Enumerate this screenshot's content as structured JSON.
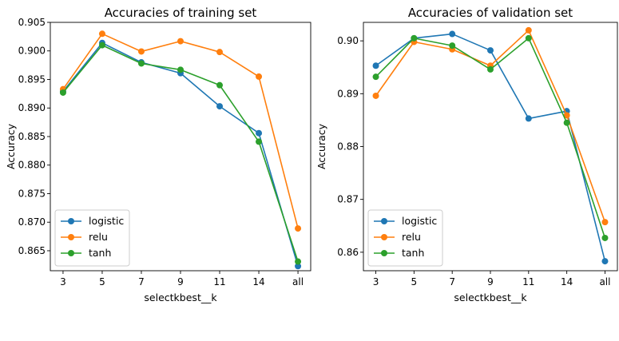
{
  "chart_data": [
    {
      "type": "line",
      "title": "Accuracies of training set",
      "xlabel": "selectkbest__k",
      "ylabel": "Accuracy",
      "categories": [
        "3",
        "5",
        "7",
        "9",
        "11",
        "14",
        "all"
      ],
      "ylim": [
        0.8615,
        0.905
      ],
      "yticks": [
        0.865,
        0.87,
        0.875,
        0.88,
        0.885,
        0.89,
        0.895,
        0.9,
        0.905
      ],
      "yticklabels": [
        "0.865",
        "0.870",
        "0.875",
        "0.880",
        "0.885",
        "0.890",
        "0.895",
        "0.900",
        "0.905"
      ],
      "legend_position": "lower-left",
      "series": [
        {
          "name": "logistic",
          "color": "#1f77b4",
          "values": [
            0.8929,
            0.9014,
            0.898,
            0.8961,
            0.8903,
            0.8856,
            0.8623
          ]
        },
        {
          "name": "relu",
          "color": "#ff7f0e",
          "values": [
            0.8933,
            0.903,
            0.8999,
            0.9017,
            0.8998,
            0.8955,
            0.8689
          ]
        },
        {
          "name": "tanh",
          "color": "#2ca02c",
          "values": [
            0.8927,
            0.901,
            0.8978,
            0.8967,
            0.894,
            0.8841,
            0.8631
          ]
        }
      ]
    },
    {
      "type": "line",
      "title": "Accuracies of validation set",
      "xlabel": "selectkbest__k",
      "ylabel": "Accuracy",
      "categories": [
        "3",
        "5",
        "7",
        "9",
        "11",
        "14",
        "all"
      ],
      "ylim": [
        0.8565,
        0.9035
      ],
      "yticks": [
        0.86,
        0.87,
        0.88,
        0.89,
        0.9
      ],
      "yticklabels": [
        "0.86",
        "0.87",
        "0.88",
        "0.89",
        "0.90"
      ],
      "legend_position": "lower-left",
      "series": [
        {
          "name": "logistic",
          "color": "#1f77b4",
          "values": [
            0.8953,
            0.9005,
            0.9013,
            0.8982,
            0.8853,
            0.8867,
            0.8583
          ]
        },
        {
          "name": "relu",
          "color": "#ff7f0e",
          "values": [
            0.8896,
            0.8998,
            0.8984,
            0.8953,
            0.902,
            0.8859,
            0.8657
          ]
        },
        {
          "name": "tanh",
          "color": "#2ca02c",
          "values": [
            0.8932,
            0.9005,
            0.8991,
            0.8946,
            0.9005,
            0.8845,
            0.8627
          ]
        }
      ]
    }
  ]
}
